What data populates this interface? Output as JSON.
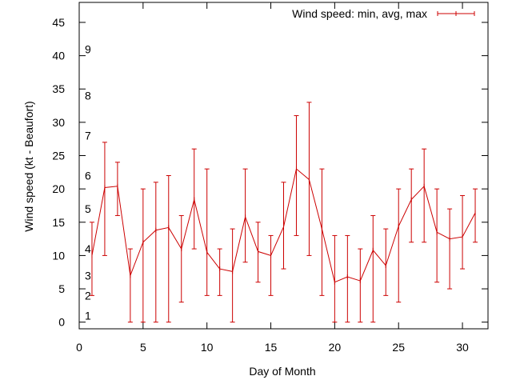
{
  "chart_data": {
    "type": "line",
    "title": "",
    "xlabel": "Day of Month",
    "ylabel": "Wind speed (kt - Beaufort)",
    "xlim": [
      0,
      32
    ],
    "ylim": [
      -1,
      48
    ],
    "xticks": [
      0,
      5,
      10,
      15,
      20,
      25,
      30
    ],
    "yticks": [
      0,
      5,
      10,
      15,
      20,
      25,
      30,
      35,
      40,
      45
    ],
    "grid": false,
    "legend_position": "top-right",
    "series": [
      {
        "name": "Wind speed: min, avg, max",
        "color": "#cc0000",
        "points": [
          {
            "x": 1,
            "min": 4,
            "avg": 10,
            "max": 15
          },
          {
            "x": 2,
            "min": 10,
            "avg": 20.2,
            "max": 27
          },
          {
            "x": 3,
            "min": 16,
            "avg": 20.4,
            "max": 24
          },
          {
            "x": 4,
            "min": 0,
            "avg": 7,
            "max": 11
          },
          {
            "x": 5,
            "min": 0,
            "avg": 12,
            "max": 20
          },
          {
            "x": 6,
            "min": 0,
            "avg": 13.8,
            "max": 21
          },
          {
            "x": 7,
            "min": 0,
            "avg": 14.2,
            "max": 22
          },
          {
            "x": 8,
            "min": 3,
            "avg": 11,
            "max": 16
          },
          {
            "x": 9,
            "min": 11,
            "avg": 18.4,
            "max": 26
          },
          {
            "x": 10,
            "min": 4,
            "avg": 10.5,
            "max": 23
          },
          {
            "x": 11,
            "min": 4,
            "avg": 8,
            "max": 11
          },
          {
            "x": 12,
            "min": 0,
            "avg": 7.6,
            "max": 14
          },
          {
            "x": 13,
            "min": 9,
            "avg": 15.8,
            "max": 23
          },
          {
            "x": 14,
            "min": 6,
            "avg": 10.6,
            "max": 15
          },
          {
            "x": 15,
            "min": 4,
            "avg": 10,
            "max": 13
          },
          {
            "x": 16,
            "min": 8,
            "avg": 14.3,
            "max": 21
          },
          {
            "x": 17,
            "min": 13,
            "avg": 23,
            "max": 31
          },
          {
            "x": 18,
            "min": 10,
            "avg": 21.4,
            "max": 33
          },
          {
            "x": 19,
            "min": 4,
            "avg": 14,
            "max": 23
          },
          {
            "x": 20,
            "min": 0,
            "avg": 6,
            "max": 13
          },
          {
            "x": 21,
            "min": 0,
            "avg": 6.8,
            "max": 13
          },
          {
            "x": 22,
            "min": 0,
            "avg": 6.2,
            "max": 11
          },
          {
            "x": 23,
            "min": 0,
            "avg": 10.8,
            "max": 16
          },
          {
            "x": 24,
            "min": 4,
            "avg": 8.5,
            "max": 14
          },
          {
            "x": 25,
            "min": 3,
            "avg": 14.4,
            "max": 20
          },
          {
            "x": 26,
            "min": 12,
            "avg": 18.4,
            "max": 23
          },
          {
            "x": 27,
            "min": 12,
            "avg": 20.4,
            "max": 26
          },
          {
            "x": 28,
            "min": 6,
            "avg": 13.5,
            "max": 20
          },
          {
            "x": 29,
            "min": 5,
            "avg": 12.5,
            "max": 17
          },
          {
            "x": 30,
            "min": 8,
            "avg": 12.8,
            "max": 19
          },
          {
            "x": 31,
            "min": 12,
            "avg": 16.4,
            "max": 20
          }
        ]
      }
    ],
    "beaufort_scale": [
      {
        "label": "1",
        "y": 1
      },
      {
        "label": "2",
        "y": 4
      },
      {
        "label": "3",
        "y": 7
      },
      {
        "label": "4",
        "y": 11
      },
      {
        "label": "5",
        "y": 17
      },
      {
        "label": "6",
        "y": 22
      },
      {
        "label": "7",
        "y": 28
      },
      {
        "label": "8",
        "y": 34
      },
      {
        "label": "9",
        "y": 41
      }
    ]
  }
}
